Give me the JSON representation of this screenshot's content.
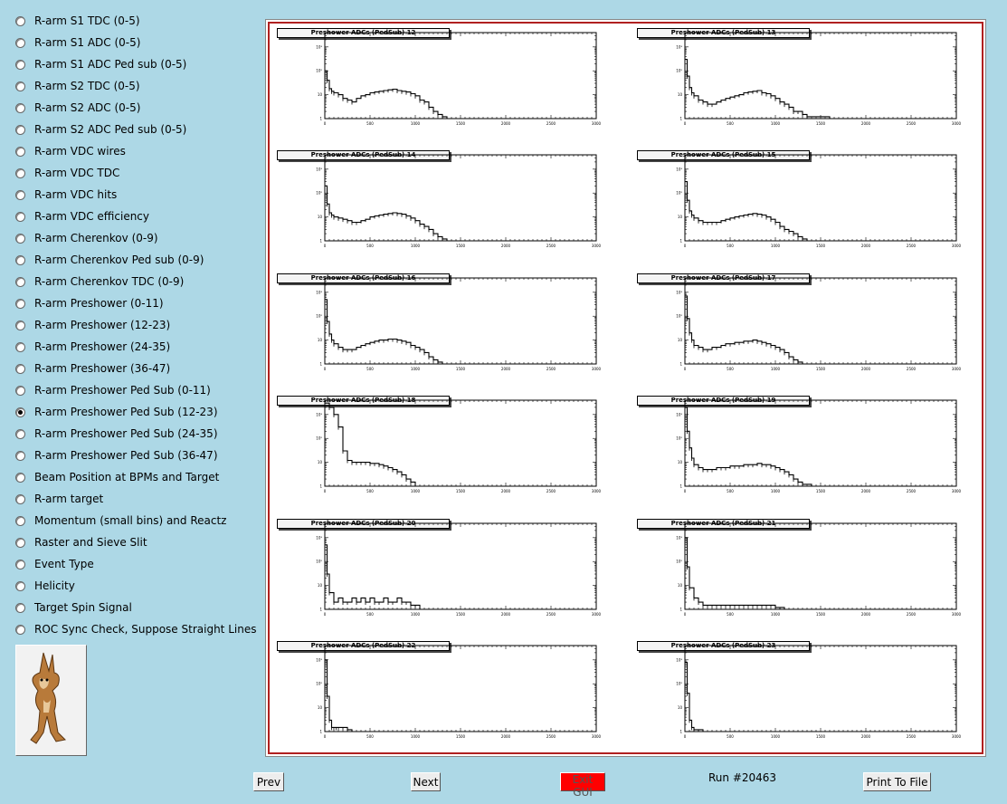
{
  "sidebar": {
    "items": [
      {
        "label": "R-arm S1 TDC (0-5)",
        "checked": false
      },
      {
        "label": "R-arm S1 ADC (0-5)",
        "checked": false
      },
      {
        "label": "R-arm S1 ADC Ped sub (0-5)",
        "checked": false
      },
      {
        "label": "R-arm S2 TDC (0-5)",
        "checked": false
      },
      {
        "label": "R-arm S2 ADC (0-5)",
        "checked": false
      },
      {
        "label": "R-arm S2 ADC Ped sub (0-5)",
        "checked": false
      },
      {
        "label": "R-arm VDC wires",
        "checked": false
      },
      {
        "label": "R-arm VDC TDC",
        "checked": false
      },
      {
        "label": "R-arm VDC hits",
        "checked": false
      },
      {
        "label": "R-arm VDC efficiency",
        "checked": false
      },
      {
        "label": "R-arm Cherenkov (0-9)",
        "checked": false
      },
      {
        "label": "R-arm Cherenkov Ped sub (0-9)",
        "checked": false
      },
      {
        "label": "R-arm Cherenkov TDC (0-9)",
        "checked": false
      },
      {
        "label": "R-arm Preshower (0-11)",
        "checked": false
      },
      {
        "label": "R-arm Preshower (12-23)",
        "checked": false
      },
      {
        "label": "R-arm Preshower (24-35)",
        "checked": false
      },
      {
        "label": "R-arm Preshower (36-47)",
        "checked": false
      },
      {
        "label": "R-arm Preshower Ped Sub (0-11)",
        "checked": false
      },
      {
        "label": "R-arm Preshower Ped Sub (12-23)",
        "checked": true
      },
      {
        "label": "R-arm Preshower Ped Sub (24-35)",
        "checked": false
      },
      {
        "label": "R-arm Preshower Ped Sub (36-47)",
        "checked": false
      },
      {
        "label": "Beam Position at BPMs and Target",
        "checked": false
      },
      {
        "label": "R-arm target",
        "checked": false
      },
      {
        "label": "Momentum (small bins) and Reactz",
        "checked": false
      },
      {
        "label": "Raster and Sieve Slit",
        "checked": false
      },
      {
        "label": "Event Type",
        "checked": false
      },
      {
        "label": "Helicity",
        "checked": false
      },
      {
        "label": "Target Spin Signal",
        "checked": false
      },
      {
        "label": "ROC Sync Check, Suppose Straight Lines",
        "checked": false
      }
    ]
  },
  "logo": {
    "icon": "wile-e-coyote-icon"
  },
  "buttons": {
    "prev": "Prev",
    "next": "Next",
    "exit": "Exit GUI",
    "print": "Print To File"
  },
  "colors": {
    "exit_button": "#ff0000",
    "canvas_border": "#b02020",
    "background": "#add8e6"
  },
  "run_label": "Run #20463",
  "chart_data": [
    {
      "type": "line",
      "title": "Preshower ADCs (PedSub) 12",
      "log_y": true,
      "xlim": [
        0,
        3000
      ],
      "x_ticks": [
        "0",
        "500",
        "1000",
        "1500",
        "2000",
        "2500",
        "3000"
      ],
      "y_ticks": [
        "1",
        "10",
        "10²",
        "10³"
      ],
      "x": [
        0,
        25,
        50,
        75,
        100,
        150,
        200,
        250,
        300,
        350,
        400,
        450,
        500,
        550,
        600,
        650,
        700,
        750,
        800,
        850,
        900,
        950,
        1000,
        1050,
        1100,
        1150,
        1200,
        1250,
        1300,
        1350
      ],
      "values": [
        100,
        40,
        18,
        14,
        12,
        10,
        7,
        6,
        5,
        7,
        9,
        10,
        12,
        13,
        14,
        15,
        16,
        17,
        15,
        14,
        13,
        11,
        9,
        6,
        5,
        3,
        2,
        1.5,
        1.2,
        1
      ]
    },
    {
      "type": "line",
      "title": "Preshower ADCs (PedSub) 13",
      "log_y": true,
      "xlim": [
        0,
        3000
      ],
      "x_ticks": [
        "0",
        "500",
        "1000",
        "1500",
        "2000",
        "2500",
        "3000"
      ],
      "y_ticks": [
        "1",
        "10",
        "10²",
        "10³"
      ],
      "x": [
        0,
        25,
        50,
        75,
        100,
        150,
        200,
        250,
        300,
        350,
        400,
        450,
        500,
        550,
        600,
        650,
        700,
        750,
        800,
        850,
        900,
        950,
        1000,
        1050,
        1100,
        1150,
        1200,
        1250,
        1300,
        1350,
        1600
      ],
      "values": [
        300,
        60,
        20,
        12,
        9,
        6,
        5,
        4,
        4,
        5,
        6,
        7,
        8,
        9,
        10,
        12,
        13,
        14,
        15,
        12,
        11,
        9,
        7,
        5,
        4,
        3,
        2,
        2,
        1.5,
        1.2,
        1
      ]
    },
    {
      "type": "line",
      "title": "Preshower ADCs (PedSub) 14",
      "log_y": true,
      "xlim": [
        0,
        3000
      ],
      "x_ticks": [
        "0",
        "500",
        "1000",
        "1500",
        "2000",
        "2500",
        "3000"
      ],
      "y_ticks": [
        "1",
        "10",
        "10²",
        "10³"
      ],
      "x": [
        0,
        25,
        50,
        75,
        100,
        150,
        200,
        250,
        300,
        350,
        400,
        450,
        500,
        550,
        600,
        650,
        700,
        750,
        800,
        850,
        900,
        950,
        1000,
        1050,
        1100,
        1150,
        1200,
        1250,
        1300,
        1350,
        1700
      ],
      "values": [
        200,
        35,
        15,
        12,
        10,
        9,
        8,
        7,
        6,
        6,
        7,
        8,
        10,
        11,
        12,
        13,
        14,
        15,
        14,
        13,
        11,
        9,
        7,
        5,
        4,
        3,
        2,
        1.5,
        1.2,
        1,
        1
      ]
    },
    {
      "type": "line",
      "title": "Preshower ADCs (PedSub) 15",
      "log_y": true,
      "xlim": [
        0,
        3000
      ],
      "x_ticks": [
        "0",
        "500",
        "1000",
        "1500",
        "2000",
        "2500",
        "3000"
      ],
      "y_ticks": [
        "1",
        "10",
        "10²",
        "10³"
      ],
      "x": [
        0,
        25,
        50,
        75,
        100,
        150,
        200,
        250,
        300,
        350,
        400,
        450,
        500,
        550,
        600,
        650,
        700,
        750,
        800,
        850,
        900,
        950,
        1000,
        1050,
        1100,
        1150,
        1200,
        1250,
        1300,
        1350,
        1400
      ],
      "values": [
        300,
        50,
        18,
        12,
        9,
        7,
        6,
        6,
        6,
        6,
        7,
        8,
        9,
        10,
        11,
        12,
        13,
        14,
        13,
        12,
        10,
        8,
        6,
        4,
        3,
        2.5,
        2,
        1.5,
        1.2,
        1,
        1
      ]
    },
    {
      "type": "line",
      "title": "Preshower ADCs (PedSub) 16",
      "log_y": true,
      "xlim": [
        0,
        3000
      ],
      "x_ticks": [
        "0",
        "500",
        "1000",
        "1500",
        "2000",
        "2500",
        "3000"
      ],
      "y_ticks": [
        "1",
        "10",
        "10²",
        "10³"
      ],
      "x": [
        0,
        25,
        50,
        75,
        100,
        150,
        200,
        250,
        300,
        350,
        400,
        450,
        500,
        550,
        600,
        650,
        700,
        750,
        800,
        850,
        900,
        950,
        1000,
        1050,
        1100,
        1150,
        1200,
        1250,
        1300
      ],
      "values": [
        500,
        60,
        18,
        10,
        7,
        5,
        4,
        4,
        4,
        5,
        6,
        7,
        8,
        9,
        10,
        10,
        11,
        11,
        10,
        9,
        8,
        6,
        5,
        4,
        3,
        2,
        1.5,
        1.2,
        1
      ]
    },
    {
      "type": "line",
      "title": "Preshower ADCs (PedSub) 17",
      "log_y": true,
      "xlim": [
        0,
        3000
      ],
      "x_ticks": [
        "0",
        "500",
        "1000",
        "1500",
        "2000",
        "2500",
        "3000"
      ],
      "y_ticks": [
        "1",
        "10",
        "10²",
        "10³"
      ],
      "x": [
        0,
        25,
        50,
        75,
        100,
        150,
        200,
        250,
        300,
        350,
        400,
        450,
        500,
        550,
        600,
        650,
        700,
        750,
        800,
        850,
        900,
        950,
        1000,
        1050,
        1100,
        1150,
        1200,
        1250,
        1300
      ],
      "values": [
        700,
        80,
        20,
        10,
        6,
        5,
        4,
        4,
        5,
        5,
        6,
        7,
        7,
        8,
        8,
        9,
        9,
        10,
        9,
        8,
        7,
        6,
        5,
        4,
        3,
        2,
        1.5,
        1.2,
        1
      ]
    },
    {
      "type": "line",
      "title": "Preshower ADCs (PedSub) 18",
      "log_y": true,
      "xlim": [
        0,
        3000
      ],
      "x_ticks": [
        "0",
        "500",
        "1000",
        "1500",
        "2000",
        "2500",
        "3000"
      ],
      "y_ticks": [
        "1",
        "10",
        "10²",
        "10³"
      ],
      "x": [
        0,
        50,
        100,
        150,
        200,
        250,
        300,
        350,
        400,
        450,
        500,
        550,
        600,
        650,
        700,
        750,
        800,
        850,
        900,
        950,
        1000
      ],
      "values": [
        3000,
        2000,
        1000,
        300,
        30,
        12,
        10,
        10,
        10,
        10,
        9,
        9,
        8,
        7,
        6,
        5,
        4,
        3,
        2,
        1.5,
        1
      ]
    },
    {
      "type": "line",
      "title": "Preshower ADCs (PedSub) 19",
      "log_y": true,
      "xlim": [
        0,
        3000
      ],
      "x_ticks": [
        "0",
        "500",
        "1000",
        "1500",
        "2000",
        "2500",
        "3000"
      ],
      "y_ticks": [
        "1",
        "10",
        "10²",
        "10³"
      ],
      "x": [
        0,
        25,
        50,
        75,
        100,
        150,
        200,
        250,
        300,
        350,
        400,
        450,
        500,
        550,
        600,
        650,
        700,
        750,
        800,
        850,
        900,
        950,
        1000,
        1050,
        1100,
        1150,
        1200,
        1250,
        1300,
        1400,
        1500
      ],
      "values": [
        2000,
        200,
        40,
        15,
        8,
        6,
        5,
        5,
        5,
        6,
        6,
        6,
        7,
        7,
        7,
        8,
        8,
        8,
        9,
        8,
        8,
        7,
        6,
        5,
        4,
        3,
        2,
        1.5,
        1.2,
        1,
        1
      ]
    },
    {
      "type": "line",
      "title": "Preshower ADCs (PedSub) 20",
      "log_y": true,
      "xlim": [
        0,
        3000
      ],
      "x_ticks": [
        "0",
        "500",
        "1000",
        "1500",
        "2000",
        "2500",
        "3000"
      ],
      "y_ticks": [
        "1",
        "10",
        "10²",
        "10³"
      ],
      "x": [
        0,
        25,
        50,
        100,
        150,
        200,
        250,
        300,
        350,
        400,
        450,
        500,
        550,
        600,
        650,
        700,
        750,
        800,
        850,
        900,
        950,
        1000,
        1050,
        1100
      ],
      "values": [
        500,
        30,
        5,
        2,
        3,
        2,
        2,
        3,
        2,
        3,
        2,
        3,
        2,
        2,
        3,
        2,
        2,
        3,
        2,
        2,
        1.5,
        1.5,
        1,
        1
      ]
    },
    {
      "type": "line",
      "title": "Preshower ADCs (PedSub) 21",
      "log_y": true,
      "xlim": [
        0,
        3000
      ],
      "x_ticks": [
        "0",
        "500",
        "1000",
        "1500",
        "2000",
        "2500",
        "3000"
      ],
      "y_ticks": [
        "1",
        "10",
        "10²",
        "10³"
      ],
      "x": [
        0,
        25,
        50,
        100,
        150,
        200,
        250,
        300,
        350,
        400,
        450,
        500,
        550,
        600,
        650,
        700,
        750,
        800,
        850,
        900,
        950,
        1000,
        1050,
        1100,
        1150,
        1200
      ],
      "values": [
        1000,
        60,
        8,
        3,
        2,
        1.5,
        1.5,
        1.5,
        1.5,
        1.5,
        1.5,
        1.5,
        1.5,
        1.5,
        1.5,
        1.5,
        1.5,
        1.5,
        1.5,
        1.5,
        1.5,
        1.2,
        1.2,
        1,
        1,
        1
      ]
    },
    {
      "type": "line",
      "title": "Preshower ADCs (PedSub) 22",
      "log_y": true,
      "xlim": [
        0,
        3000
      ],
      "x_ticks": [
        "0",
        "500",
        "1000",
        "1500",
        "2000",
        "2500",
        "3000"
      ],
      "y_ticks": [
        "1",
        "10",
        "10²",
        "10³"
      ],
      "x": [
        0,
        25,
        50,
        75,
        100,
        125,
        150,
        200,
        250,
        300,
        350
      ],
      "values": [
        1000,
        30,
        3,
        1.5,
        1.5,
        1.5,
        1.5,
        1.5,
        1.2,
        1,
        1
      ]
    },
    {
      "type": "line",
      "title": "Preshower ADCs (PedSub) 23",
      "log_y": true,
      "xlim": [
        0,
        3000
      ],
      "x_ticks": [
        "0",
        "500",
        "1000",
        "1500",
        "2000",
        "2500",
        "3000"
      ],
      "y_ticks": [
        "1",
        "10",
        "10²",
        "10³"
      ],
      "x": [
        0,
        25,
        50,
        75,
        100,
        150,
        200,
        250
      ],
      "values": [
        800,
        40,
        3,
        1.5,
        1.2,
        1.2,
        1,
        1
      ]
    }
  ]
}
